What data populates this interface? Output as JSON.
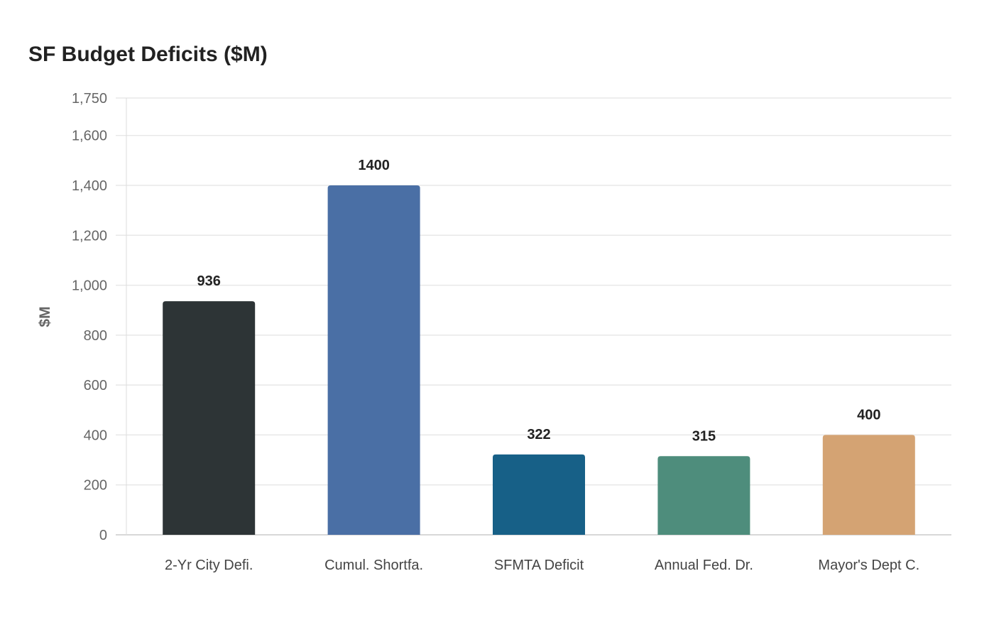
{
  "chart_data": {
    "type": "bar",
    "title": "SF Budget Deficits ($M)",
    "xlabel": "",
    "ylabel": "$M",
    "ylim": [
      0,
      1750
    ],
    "yticks": [
      0,
      200,
      400,
      600,
      800,
      1000,
      1200,
      1400,
      1600,
      1750
    ],
    "ytick_labels": [
      "0",
      "200",
      "400",
      "600",
      "800",
      "1,000",
      "1,200",
      "1,400",
      "1,600",
      "1,750"
    ],
    "grid": true,
    "categories": [
      "2-Yr City Defi.",
      "Cumul. Shortfa.",
      "SFMTA Deficit",
      "Annual Fed. Dr.",
      "Mayor's Dept C."
    ],
    "values": [
      936,
      1400,
      322,
      315,
      400
    ],
    "data_labels": [
      "936",
      "1400",
      "322",
      "315",
      "400"
    ],
    "colors": [
      "#2d3436",
      "#4a6fa5",
      "#176087",
      "#4e8d7c",
      "#d4a373"
    ]
  }
}
